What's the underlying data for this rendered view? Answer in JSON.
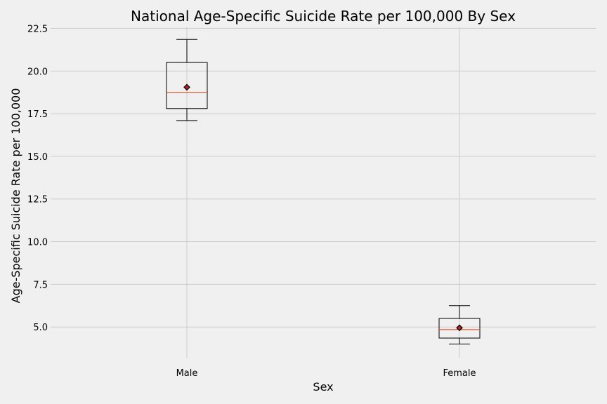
{
  "chart_data": {
    "type": "box",
    "title": "National Age-Specific Suicide Rate per 100,000 By Sex",
    "xlabel": "Sex",
    "ylabel": "Age-Specific Suicide Rate per 100,000",
    "categories": [
      "Male",
      "Female"
    ],
    "ylim": [
      3.2,
      22.6
    ],
    "yticks": [
      "5.0",
      "7.5",
      "10.0",
      "12.5",
      "15.0",
      "17.5",
      "20.0",
      "22.5"
    ],
    "grid": true,
    "boxes": [
      {
        "category": "Male",
        "whisker_low": 17.1,
        "q1": 17.8,
        "median": 18.75,
        "mean": 19.05,
        "q3": 20.5,
        "whisker_high": 21.85
      },
      {
        "category": "Female",
        "whisker_low": 4.0,
        "q1": 4.35,
        "median": 4.85,
        "mean": 4.95,
        "q3": 5.5,
        "whisker_high": 6.25
      }
    ],
    "colors": {
      "background": "#f0f0f0",
      "grid": "#cbcbcb",
      "median": "#e8522c",
      "mean_marker": "#b22222"
    }
  }
}
